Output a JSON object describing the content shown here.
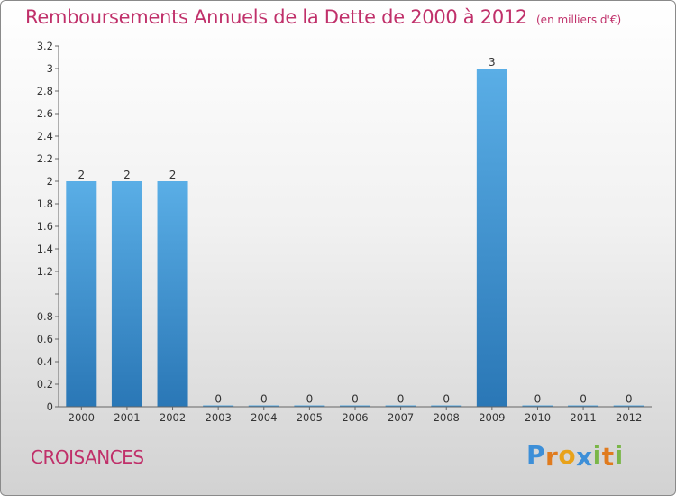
{
  "header": {
    "title": "Remboursements Annuels de la Dette de 2000 à 2012",
    "unit": "(en milliers d'€)"
  },
  "footer": {
    "location": "CROISANCES",
    "brand_letters": [
      "P",
      "r",
      "o",
      "x",
      "i",
      "t",
      "i"
    ],
    "brand_colors": [
      "#3d8fd8",
      "#e07b1e",
      "#e8a21a",
      "#3d8fd8",
      "#7ab648",
      "#e07b1e",
      "#7ab648"
    ]
  },
  "chart_data": {
    "type": "bar",
    "categories": [
      "2000",
      "2001",
      "2002",
      "2003",
      "2004",
      "2005",
      "2006",
      "2007",
      "2008",
      "2009",
      "2010",
      "2011",
      "2012"
    ],
    "values": [
      2,
      2,
      2,
      0,
      0,
      0,
      0,
      0,
      0,
      3,
      0,
      0,
      0
    ],
    "value_labels": [
      "2",
      "2",
      "2",
      "0",
      "0",
      "0",
      "0",
      "0",
      "0",
      "3",
      "0",
      "0",
      "0"
    ],
    "ylim": [
      0,
      3.2
    ],
    "y_ticks": [
      0,
      0.2,
      0.4,
      0.6,
      0.8,
      1,
      1.2,
      1.4,
      1.6,
      1.8,
      2,
      2.2,
      2.4,
      2.6,
      2.8,
      3,
      3.2
    ],
    "y_tick_labels": [
      "0",
      "0.2",
      "0.4",
      "0.6",
      "0.8",
      "",
      "1.2",
      "1.4",
      "1.6",
      "1.8",
      "2",
      "2.2",
      "2.4",
      "2.6",
      "2.8",
      "3",
      "3.2"
    ],
    "bar_color_top": "#5aaee6",
    "bar_color_bottom": "#2a77b6",
    "grid": false,
    "legend": "none"
  }
}
